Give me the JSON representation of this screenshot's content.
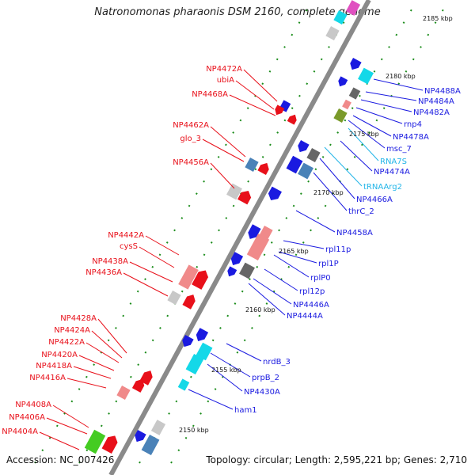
{
  "title": "Natronomonas pharaonis DSM 2160, complete genome",
  "footer": {
    "accession": "Accession: NC_007426",
    "summary": "Topology: circular; Length: 2,595,221 bp; Genes: 2,710"
  },
  "colors": {
    "backbone": "#8a8a8a",
    "left_label": "#e8101a",
    "right_label": "#1a1ae0",
    "rna_label": "#22b5e8",
    "tick_green": "#1a8c1a"
  },
  "ticks": [
    {
      "label": "2185 kbp"
    },
    {
      "label": "2180 kbp"
    },
    {
      "label": "2175 kbp"
    },
    {
      "label": "2170 kbp"
    },
    {
      "label": "2165 kbp"
    },
    {
      "label": "2160 kbp"
    },
    {
      "label": "2155 kbp"
    },
    {
      "label": "2150 kbp"
    }
  ],
  "left_labels": [
    {
      "text": "NP4472A"
    },
    {
      "text": "ubiA"
    },
    {
      "text": "NP4468A"
    },
    {
      "text": "NP4462A"
    },
    {
      "text": "glo_3"
    },
    {
      "text": "NP4456A"
    },
    {
      "text": "NP4442A"
    },
    {
      "text": "cysS"
    },
    {
      "text": "NP4438A"
    },
    {
      "text": "NP4436A"
    },
    {
      "text": "NP4428A"
    },
    {
      "text": "NP4424A"
    },
    {
      "text": "NP4422A"
    },
    {
      "text": "NP4420A"
    },
    {
      "text": "NP4418A"
    },
    {
      "text": "NP4416A"
    },
    {
      "text": "NP4408A"
    },
    {
      "text": "NP4406A"
    },
    {
      "text": "NP4404A"
    }
  ],
  "right_labels": [
    {
      "text": "NP4488A"
    },
    {
      "text": "NP4484A"
    },
    {
      "text": "NP4482A"
    },
    {
      "text": "rnp4"
    },
    {
      "text": "NP4478A"
    },
    {
      "text": "msc_7"
    },
    {
      "text": "RNA7S"
    },
    {
      "text": "NP4474A"
    },
    {
      "text": "tRNAArg2"
    },
    {
      "text": "NP4466A"
    },
    {
      "text": "thrC_2"
    },
    {
      "text": "NP4458A"
    },
    {
      "text": "rpl11p"
    },
    {
      "text": "rpl1P"
    },
    {
      "text": "rplP0"
    },
    {
      "text": "rpl12p"
    },
    {
      "text": "NP4446A"
    },
    {
      "text": "NP4444A"
    },
    {
      "text": "nrdB_3"
    },
    {
      "text": "prpB_2"
    },
    {
      "text": "NP4430A"
    },
    {
      "text": "ham1"
    }
  ]
}
